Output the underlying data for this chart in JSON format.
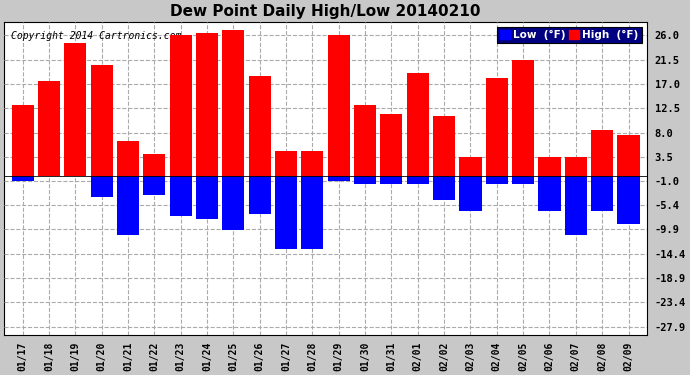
{
  "title": "Dew Point Daily High/Low 20140210",
  "copyright": "Copyright 2014 Cartronics.com",
  "ylabel_right_ticks": [
    26.0,
    21.5,
    17.0,
    12.5,
    8.0,
    3.5,
    -1.0,
    -5.4,
    -9.9,
    -14.4,
    -18.9,
    -23.4,
    -27.9
  ],
  "dates": [
    "01/17",
    "01/18",
    "01/19",
    "01/20",
    "01/21",
    "01/22",
    "01/23",
    "01/24",
    "01/25",
    "01/26",
    "01/27",
    "01/28",
    "01/29",
    "01/30",
    "01/31",
    "02/01",
    "02/02",
    "02/03",
    "02/04",
    "02/05",
    "02/06",
    "02/07",
    "02/08",
    "02/09"
  ],
  "high": [
    13.0,
    17.5,
    24.5,
    20.5,
    6.5,
    4.0,
    26.0,
    26.5,
    27.0,
    18.5,
    4.5,
    4.5,
    26.0,
    13.0,
    11.5,
    19.0,
    11.0,
    3.5,
    18.0,
    21.5,
    3.5,
    3.5,
    8.5,
    7.5
  ],
  "low": [
    -1.0,
    2.0,
    2.0,
    -4.0,
    -11.0,
    -3.5,
    -7.5,
    -8.0,
    -10.0,
    -7.0,
    -13.5,
    -13.5,
    -1.0,
    -1.5,
    -1.5,
    -1.5,
    -4.5,
    -6.5,
    -1.5,
    -1.5,
    -6.5,
    -11.0,
    -6.5,
    -9.0
  ],
  "high_color": "#ff0000",
  "low_color": "#0000ff",
  "background_color": "#c8c8c8",
  "plot_bg_color": "#ffffff",
  "grid_color": "#aaaaaa",
  "title_fontsize": 11,
  "bar_width": 0.42,
  "ylim_min": -29.5,
  "ylim_max": 28.5
}
